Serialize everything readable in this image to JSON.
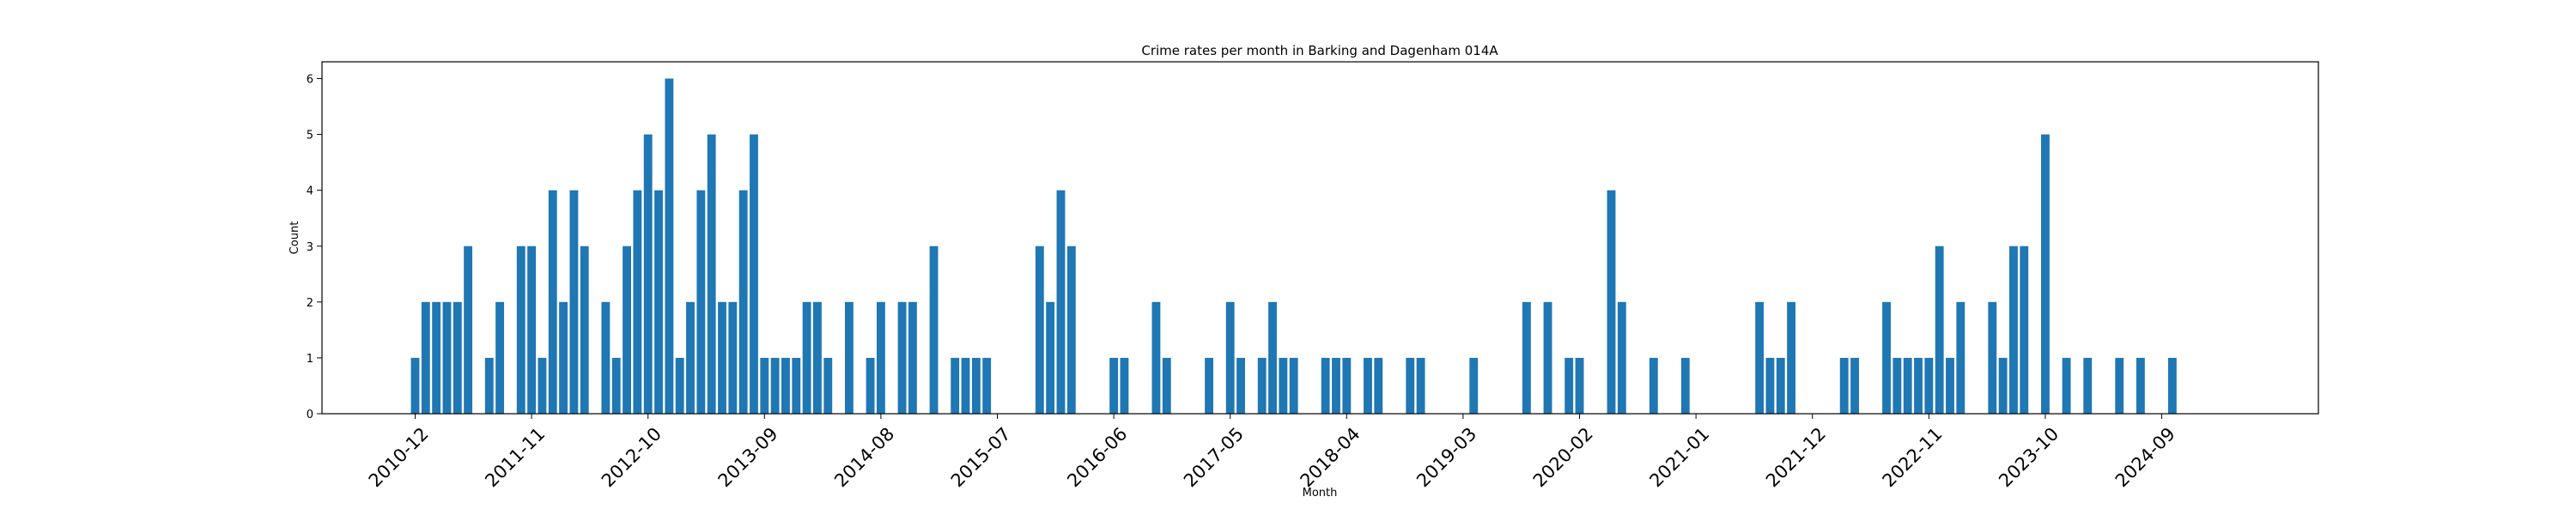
{
  "chart_data": {
    "type": "bar",
    "title": "Crime rates per month in Barking and Dagenham 014A",
    "xlabel": "Month",
    "ylabel": "Count",
    "ylim": [
      0,
      6.3
    ],
    "yticks": [
      0,
      1,
      2,
      3,
      4,
      5,
      6
    ],
    "xtick_labels": [
      "2010-12",
      "2011-11",
      "2012-10",
      "2013-09",
      "2014-08",
      "2015-07",
      "2016-06",
      "2017-05",
      "2018-04",
      "2019-03",
      "2020-02",
      "2021-01",
      "2021-12",
      "2022-11",
      "2023-10",
      "2024-09"
    ],
    "grid": false,
    "legend": "none",
    "bar_color": "#1f77b4",
    "categories": [
      "2010-12",
      "2011-01",
      "2011-02",
      "2011-03",
      "2011-04",
      "2011-05",
      "2011-07",
      "2011-08",
      "2011-10",
      "2011-11",
      "2011-12",
      "2012-01",
      "2012-02",
      "2012-03",
      "2012-04",
      "2012-06",
      "2012-07",
      "2012-08",
      "2012-09",
      "2012-10",
      "2012-11",
      "2012-12",
      "2013-01",
      "2013-02",
      "2013-03",
      "2013-04",
      "2013-05",
      "2013-06",
      "2013-07",
      "2013-08",
      "2013-09",
      "2013-10",
      "2013-11",
      "2013-12",
      "2014-01",
      "2014-02",
      "2014-03",
      "2014-05",
      "2014-07",
      "2014-08",
      "2014-10",
      "2014-11",
      "2015-01",
      "2015-03",
      "2015-04",
      "2015-05",
      "2015-06",
      "2015-11",
      "2015-12",
      "2016-01",
      "2016-02",
      "2016-06",
      "2016-07",
      "2016-10",
      "2016-11",
      "2017-03",
      "2017-05",
      "2017-06",
      "2017-08",
      "2017-09",
      "2017-10",
      "2017-11",
      "2018-02",
      "2018-03",
      "2018-04",
      "2018-06",
      "2018-07",
      "2018-10",
      "2018-11",
      "2019-04",
      "2019-09",
      "2019-11",
      "2020-01",
      "2020-02",
      "2020-05",
      "2020-06",
      "2020-09",
      "2020-12",
      "2021-07",
      "2021-08",
      "2021-09",
      "2021-10",
      "2022-03",
      "2022-04",
      "2022-07",
      "2022-08",
      "2022-09",
      "2022-10",
      "2022-11",
      "2022-12",
      "2023-01",
      "2023-02",
      "2023-05",
      "2023-06",
      "2023-07",
      "2023-08",
      "2023-10",
      "2023-12",
      "2024-02",
      "2024-05",
      "2024-07",
      "2024-10"
    ],
    "values": [
      1,
      2,
      2,
      2,
      2,
      3,
      1,
      2,
      3,
      3,
      1,
      4,
      2,
      4,
      3,
      2,
      1,
      3,
      4,
      5,
      4,
      6,
      1,
      2,
      4,
      5,
      2,
      2,
      4,
      5,
      1,
      1,
      1,
      1,
      2,
      2,
      1,
      2,
      1,
      2,
      2,
      2,
      3,
      1,
      1,
      1,
      1,
      3,
      2,
      4,
      3,
      1,
      1,
      2,
      1,
      1,
      2,
      1,
      1,
      2,
      1,
      1,
      1,
      1,
      1,
      1,
      1,
      1,
      1,
      1,
      2,
      2,
      1,
      1,
      4,
      2,
      1,
      1,
      2,
      1,
      1,
      2,
      1,
      1,
      2,
      1,
      1,
      1,
      1,
      3,
      1,
      2,
      2,
      1,
      3,
      3,
      5,
      1,
      1,
      1,
      1,
      1
    ]
  }
}
